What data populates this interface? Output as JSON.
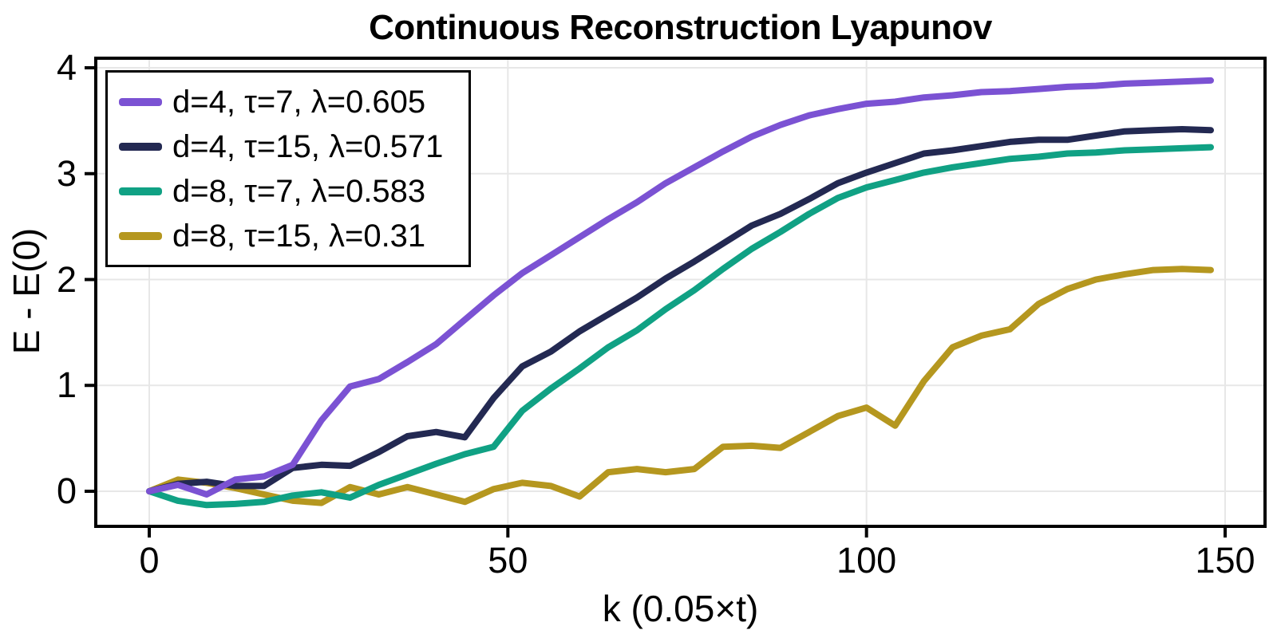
{
  "title": "Continuous Reconstruction Lyapunov",
  "axes": {
    "x": {
      "label": "k (0.05×t)",
      "ticks": [
        0,
        50,
        100,
        150
      ]
    },
    "y": {
      "label": "E - E(0)",
      "ticks": [
        0,
        1,
        2,
        3,
        4
      ]
    }
  },
  "style_colors": {
    "grid": "#e7e7e7",
    "frame": "#000000",
    "background": "#ffffff"
  },
  "chart_data": {
    "type": "line",
    "title": "Continuous Reconstruction Lyapunov",
    "xlabel": "k (0.05×t)",
    "ylabel": "E - E(0)",
    "x_ticks": [
      0,
      50,
      100,
      150
    ],
    "y_ticks": [
      0,
      1,
      2,
      3,
      4
    ],
    "xlim": [
      -7.5,
      155.5
    ],
    "ylim": [
      -0.33,
      4.09
    ],
    "grid": true,
    "legend_position": "top-left",
    "x": [
      0,
      4,
      8,
      12,
      16,
      20,
      24,
      28,
      32,
      36,
      40,
      44,
      48,
      52,
      56,
      60,
      64,
      68,
      72,
      76,
      80,
      84,
      88,
      92,
      96,
      100,
      104,
      108,
      112,
      116,
      120,
      124,
      128,
      132,
      136,
      140,
      144,
      148
    ],
    "series": [
      {
        "name": "d=4, τ=7, λ=0.605",
        "color": "#7b52d3",
        "values": [
          0,
          0.06,
          -0.03,
          0.11,
          0.14,
          0.25,
          0.67,
          0.99,
          1.06,
          1.22,
          1.39,
          1.62,
          1.85,
          2.06,
          2.23,
          2.4,
          2.57,
          2.73,
          2.91,
          3.06,
          3.21,
          3.35,
          3.46,
          3.55,
          3.61,
          3.66,
          3.68,
          3.72,
          3.74,
          3.77,
          3.78,
          3.8,
          3.82,
          3.83,
          3.85,
          3.86,
          3.87,
          3.88
        ]
      },
      {
        "name": "d=4, τ=15, λ=0.571",
        "color": "#232952",
        "values": [
          0,
          0.07,
          0.09,
          0.05,
          0.05,
          0.22,
          0.25,
          0.24,
          0.37,
          0.52,
          0.56,
          0.51,
          0.88,
          1.18,
          1.32,
          1.51,
          1.67,
          1.83,
          2.01,
          2.17,
          2.34,
          2.51,
          2.62,
          2.76,
          2.91,
          3.01,
          3.1,
          3.19,
          3.22,
          3.26,
          3.3,
          3.32,
          3.32,
          3.36,
          3.4,
          3.41,
          3.42,
          3.41
        ]
      },
      {
        "name": "d=8, τ=7, λ=0.583",
        "color": "#10a184",
        "values": [
          0,
          -0.09,
          -0.13,
          -0.12,
          -0.1,
          -0.04,
          -0.01,
          -0.06,
          0.06,
          0.16,
          0.26,
          0.35,
          0.42,
          0.76,
          0.97,
          1.16,
          1.36,
          1.52,
          1.72,
          1.9,
          2.1,
          2.29,
          2.45,
          2.62,
          2.77,
          2.87,
          2.94,
          3.01,
          3.06,
          3.1,
          3.14,
          3.16,
          3.19,
          3.2,
          3.22,
          3.23,
          3.24,
          3.25
        ]
      },
      {
        "name": "d=8, τ=15, λ=0.31",
        "color": "#b5971f",
        "values": [
          0,
          0.11,
          0.08,
          0.03,
          -0.03,
          -0.09,
          -0.11,
          0.04,
          -0.03,
          0.04,
          -0.03,
          -0.1,
          0.02,
          0.08,
          0.05,
          -0.05,
          0.18,
          0.21,
          0.18,
          0.21,
          0.42,
          0.43,
          0.41,
          0.56,
          0.71,
          0.79,
          0.62,
          1.04,
          1.36,
          1.47,
          1.53,
          1.77,
          1.91,
          2.0,
          2.05,
          2.09,
          2.1,
          2.09
        ]
      }
    ]
  }
}
